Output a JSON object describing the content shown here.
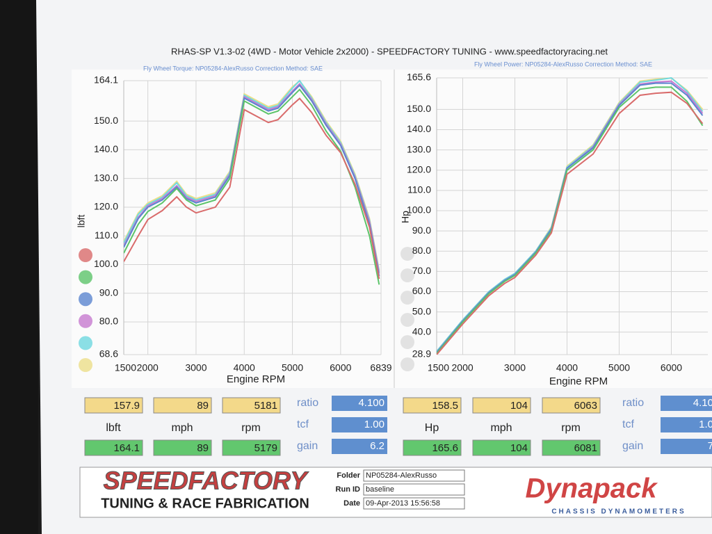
{
  "header": {
    "title": "RHAS-SP V1.3-02  (4WD - Motor Vehicle 2x2000) - SPEEDFACTORY TUNING - www.speedfactoryracing.net"
  },
  "chart_data": [
    {
      "type": "line",
      "subtitle": "Fly Wheel Torque: NP05284-AlexRusso     Correction Method: SAE",
      "x_label": "Engine RPM",
      "y_label": "lbft",
      "x": [
        1500,
        1800,
        2000,
        2300,
        2600,
        2800,
        3000,
        3400,
        3700,
        4000,
        4500,
        4700,
        5000,
        5150,
        5400,
        5700,
        6000,
        6300,
        6600,
        6800
      ],
      "series": [
        {
          "color": "#d96b6b",
          "values": [
            101,
            110,
            115.7,
            118.8,
            123.6,
            120,
            118,
            120,
            127,
            154,
            149.5,
            150.5,
            155.7,
            157.9,
            153,
            145,
            139,
            128,
            113,
            95
          ]
        },
        {
          "color": "#5cc46a",
          "values": [
            104,
            114,
            118.5,
            121.5,
            126.5,
            122.5,
            120.5,
            122.5,
            130,
            157,
            152.5,
            153.5,
            158.5,
            161,
            155.5,
            146.5,
            139.5,
            127,
            110,
            93
          ]
        },
        {
          "color": "#5b86cf",
          "values": [
            106,
            116,
            120,
            122.5,
            127,
            123,
            121.5,
            123.5,
            131,
            158,
            153.5,
            154.5,
            160,
            162.5,
            157,
            148.5,
            141.5,
            130,
            114,
            96
          ]
        },
        {
          "color": "#c77ad0",
          "values": [
            106.5,
            116.5,
            120.5,
            123,
            127.5,
            123.5,
            122,
            124,
            131.5,
            158.5,
            154,
            155,
            160.5,
            163,
            157.5,
            149,
            142,
            130.5,
            115,
            97
          ]
        },
        {
          "color": "#6fd8e0",
          "values": [
            107.5,
            117.5,
            121,
            123.5,
            128.5,
            124,
            122.5,
            124.5,
            132,
            159,
            154.5,
            155.5,
            161.5,
            164.1,
            158,
            149.5,
            142.5,
            131,
            115.5,
            97.5
          ]
        },
        {
          "color": "#ecdf8a",
          "values": [
            108,
            118,
            121.5,
            124,
            129,
            124.5,
            123,
            125,
            132.5,
            159.5,
            155,
            156,
            162,
            164,
            158.5,
            150,
            143,
            131.5,
            116,
            98
          ]
        }
      ],
      "xlim": [
        1500,
        6839
      ],
      "xticks": [
        1500,
        2000,
        3000,
        4000,
        5000,
        6000,
        6839
      ],
      "ylim": [
        68.6,
        164.1
      ],
      "yticks": [
        164.1,
        {
          "value": 150,
          "label": "150.0"
        },
        {
          "value": 140,
          "label": "140.0"
        },
        {
          "value": 130,
          "label": "130.0"
        },
        {
          "value": 120,
          "label": "120.0"
        },
        {
          "value": 110,
          "label": "110.0"
        },
        {
          "value": 100,
          "label": "100.0"
        },
        {
          "value": 90,
          "label": "90.0"
        },
        {
          "value": 80,
          "label": "80.0"
        },
        68.6
      ],
      "grid": true
    },
    {
      "type": "line",
      "subtitle": "Fly Wheel Power: NP05284-AlexRusso     Correction Method: SAE",
      "x_label": "Engine RPM",
      "y_label": "Hp",
      "x": [
        1500,
        2000,
        2500,
        2800,
        3000,
        3400,
        3700,
        4000,
        4500,
        5000,
        5400,
        5700,
        6000,
        6300,
        6600
      ],
      "series": [
        {
          "color": "#d96b6b",
          "values": [
            28.9,
            44,
            58,
            64,
            67,
            78,
            89,
            118,
            128,
            148,
            157,
            158,
            158.5,
            153,
            143
          ]
        },
        {
          "color": "#5cc46a",
          "values": [
            29.5,
            45,
            59,
            65,
            68,
            79,
            90,
            120,
            130,
            151,
            160,
            161,
            161,
            154,
            142
          ]
        },
        {
          "color": "#5b86cf",
          "values": [
            30,
            45.5,
            59.5,
            65.5,
            68.5,
            79.5,
            91,
            121,
            131,
            152,
            162,
            163,
            163,
            157,
            147
          ]
        },
        {
          "color": "#c77ad0",
          "values": [
            30,
            45.5,
            59.5,
            65.5,
            68.5,
            79.5,
            91,
            121,
            131.5,
            152.5,
            162.5,
            163.5,
            164,
            158,
            148
          ]
        },
        {
          "color": "#6fd8e0",
          "values": [
            30.5,
            46,
            60,
            66,
            69,
            80,
            91.5,
            121.5,
            132,
            153,
            163.5,
            164.5,
            165.6,
            159,
            149
          ]
        },
        {
          "color": "#ecdf8a",
          "values": [
            30.5,
            46,
            60,
            66,
            69,
            80,
            92,
            122,
            132.5,
            153.5,
            164,
            165,
            165.5,
            159.5,
            150
          ]
        }
      ],
      "xlim": [
        1500,
        6700
      ],
      "xticks": [
        1500,
        2000,
        3000,
        4000,
        5000,
        6000
      ],
      "ylim": [
        28.9,
        165.6
      ],
      "yticks": [
        165.6,
        {
          "value": 150,
          "label": "150.0"
        },
        {
          "value": 140,
          "label": "140.0"
        },
        {
          "value": 130,
          "label": "130.0"
        },
        {
          "value": 120,
          "label": "120.0"
        },
        {
          "value": 110,
          "label": "110.0"
        },
        {
          "value": 100,
          "label": "100.0"
        },
        {
          "value": 90,
          "label": "90.0"
        },
        {
          "value": 80,
          "label": "80.0"
        },
        {
          "value": 70,
          "label": "70.0"
        },
        {
          "value": 60,
          "label": "60.0"
        },
        {
          "value": 50,
          "label": "50.0"
        },
        {
          "value": 40,
          "label": "40.0"
        },
        28.9
      ],
      "grid": true
    }
  ],
  "readouts": [
    {
      "yellow": [
        "157.9",
        "89",
        "5181"
      ],
      "labels": [
        "lbft",
        "mph",
        "rpm"
      ],
      "green": [
        "164.1",
        "89",
        "5179"
      ],
      "factors": [
        {
          "label": "ratio",
          "value": "4.100"
        },
        {
          "label": "tcf",
          "value": "1.00"
        },
        {
          "label": "gain",
          "value": "6.2"
        }
      ]
    },
    {
      "yellow": [
        "158.5",
        "104",
        "6063"
      ],
      "labels": [
        "Hp",
        "mph",
        "rpm"
      ],
      "green": [
        "165.6",
        "104",
        "6081"
      ],
      "factors": [
        {
          "label": "ratio",
          "value": "4.10"
        },
        {
          "label": "tcf",
          "value": "1.0"
        },
        {
          "label": "gain",
          "value": "7"
        }
      ]
    }
  ],
  "footer": {
    "logo": "SPEEDFACTORY",
    "tagline": "TUNING & RACE FABRICATION",
    "fields": [
      {
        "label": "Folder",
        "value": "NP05284-AlexRusso"
      },
      {
        "label": "Run ID",
        "value": "baseline"
      },
      {
        "label": "Date",
        "value": "09-Apr-2013  15:56:58"
      }
    ],
    "brand": "Dynapack",
    "brand_sub": "CHASSIS   DYNAMOMETERS"
  }
}
